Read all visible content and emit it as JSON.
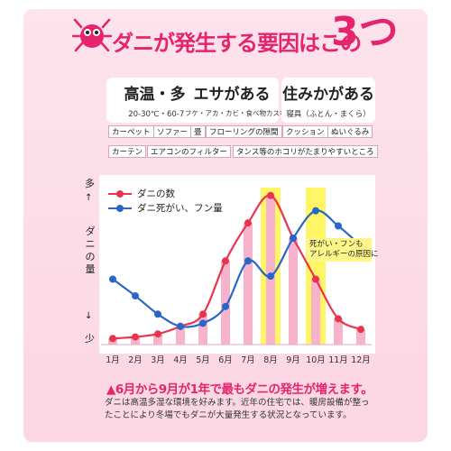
{
  "header": {
    "title": "ダニが発生する要因はこの",
    "number": "3つ"
  },
  "factors": [
    {
      "title": "高温・多湿",
      "sub": "20-30℃・60-75%"
    },
    {
      "title": "エサがある",
      "sub": "フケ・アカ・カビ・食べ物カスなど"
    },
    {
      "title": "住みかがある",
      "sub": "寝具（ふとん・まくら）"
    }
  ],
  "places": [
    "カーペット",
    "ソファー",
    "畳",
    "フローリングの隙間",
    "クッション",
    "ぬいぐるみ",
    "カーテン",
    "エアコンのフィルター",
    "タンス等のホコリがたまりやすいところ"
  ],
  "chart_data": {
    "type": "line",
    "categories": [
      "1月",
      "2月",
      "3月",
      "4月",
      "5月",
      "6月",
      "7月",
      "8月",
      "9月",
      "10月",
      "11月",
      "12月"
    ],
    "series": [
      {
        "name": "ダニの数",
        "color": "#e8344e",
        "values": [
          4,
          5,
          7,
          12,
          20,
          55,
          80,
          98,
          70,
          43,
          17,
          10
        ]
      },
      {
        "name": "ダニ死がい、フン量",
        "color": "#2a65c8",
        "values": [
          43,
          32,
          20,
          12,
          14,
          25,
          55,
          45,
          70,
          88,
          78,
          65
        ]
      }
    ],
    "bars": [
      4,
      5,
      7,
      12,
      20,
      55,
      80,
      98,
      70,
      43,
      17,
      10
    ],
    "bar_color": "#f6b3cb",
    "highlight_months": [
      "8月",
      "10月"
    ],
    "highlight_color": "#fff34a",
    "ylabel": "ダニの量",
    "ymax_label": "多",
    "ymin_label": "少",
    "ylim": [
      0,
      105
    ],
    "annotation": [
      "死がい・フンも",
      "アレルギーの原因に"
    ]
  },
  "footer": {
    "heading": "▲6月から9月が1年で最もダニの発生が増えます。",
    "body": "ダニは高温多湿な環境を好みます。近年の住宅では、暖房設備が整ったことにより冬場でもダニが大量発生する状況となっています。"
  }
}
